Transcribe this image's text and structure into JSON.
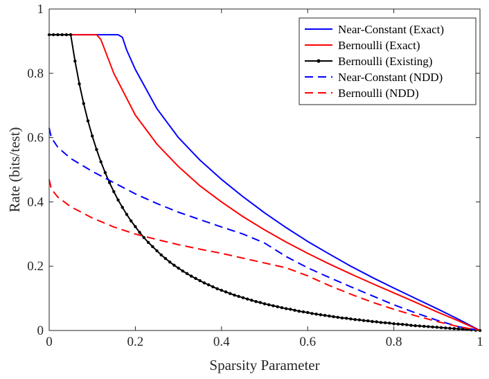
{
  "chart_data": {
    "type": "line",
    "title": "",
    "xlabel": "Sparsity Parameter",
    "ylabel": "Rate (bits/test)",
    "xlim": [
      0,
      1
    ],
    "ylim": [
      0,
      1
    ],
    "x_ticks": [
      0,
      0.2,
      0.4,
      0.6,
      0.8,
      1
    ],
    "x_tick_labels": [
      "0",
      "0.2",
      "0.4",
      "0.6",
      "0.8",
      "1"
    ],
    "y_ticks": [
      0,
      0.2,
      0.4,
      0.6,
      0.8,
      1
    ],
    "y_tick_labels": [
      "0",
      "0.2",
      "0.4",
      "0.6",
      "0.8",
      "1"
    ],
    "grid": false,
    "legend_position": "top-right",
    "series": [
      {
        "name": "Near-Constant (Exact)",
        "color": "#0000ff",
        "style": "solid",
        "marker": "none",
        "points": [
          [
            0,
            0.92
          ],
          [
            0.16,
            0.92
          ],
          [
            0.17,
            0.912
          ],
          [
            0.18,
            0.872
          ],
          [
            0.2,
            0.812
          ],
          [
            0.25,
            0.69
          ],
          [
            0.3,
            0.6
          ],
          [
            0.35,
            0.53
          ],
          [
            0.4,
            0.47
          ],
          [
            0.45,
            0.416
          ],
          [
            0.5,
            0.366
          ],
          [
            0.55,
            0.32
          ],
          [
            0.6,
            0.277
          ],
          [
            0.65,
            0.238
          ],
          [
            0.7,
            0.2
          ],
          [
            0.75,
            0.165
          ],
          [
            0.8,
            0.132
          ],
          [
            0.85,
            0.1
          ],
          [
            0.9,
            0.068
          ],
          [
            0.95,
            0.035
          ],
          [
            1,
            0
          ]
        ]
      },
      {
        "name": "Bernoulli (Exact)",
        "color": "#ff0000",
        "style": "solid",
        "marker": "none",
        "points": [
          [
            0,
            0.92
          ],
          [
            0.11,
            0.92
          ],
          [
            0.12,
            0.905
          ],
          [
            0.13,
            0.87
          ],
          [
            0.15,
            0.8
          ],
          [
            0.2,
            0.67
          ],
          [
            0.25,
            0.58
          ],
          [
            0.3,
            0.51
          ],
          [
            0.35,
            0.45
          ],
          [
            0.4,
            0.4
          ],
          [
            0.45,
            0.354
          ],
          [
            0.5,
            0.313
          ],
          [
            0.55,
            0.275
          ],
          [
            0.6,
            0.24
          ],
          [
            0.65,
            0.207
          ],
          [
            0.7,
            0.176
          ],
          [
            0.75,
            0.146
          ],
          [
            0.8,
            0.117
          ],
          [
            0.85,
            0.088
          ],
          [
            0.9,
            0.058
          ],
          [
            0.95,
            0.03
          ],
          [
            1,
            0
          ]
        ]
      },
      {
        "name": "Bernoulli (Existing)",
        "color": "#000000",
        "style": "solid",
        "marker": "dot",
        "points": [
          [
            0,
            0.92
          ],
          [
            0.01,
            0.92
          ],
          [
            0.02,
            0.92
          ],
          [
            0.03,
            0.92
          ],
          [
            0.04,
            0.92
          ],
          [
            0.05,
            0.92
          ],
          [
            0.06,
            0.838
          ],
          [
            0.07,
            0.767
          ],
          [
            0.08,
            0.706
          ],
          [
            0.09,
            0.652
          ],
          [
            0.1,
            0.605
          ],
          [
            0.11,
            0.563
          ],
          [
            0.12,
            0.525
          ],
          [
            0.13,
            0.491
          ],
          [
            0.14,
            0.46
          ],
          [
            0.15,
            0.432
          ],
          [
            0.16,
            0.406
          ],
          [
            0.17,
            0.383
          ],
          [
            0.18,
            0.361
          ],
          [
            0.19,
            0.341
          ],
          [
            0.2,
            0.323
          ],
          [
            0.21,
            0.305
          ],
          [
            0.22,
            0.289
          ],
          [
            0.23,
            0.274
          ],
          [
            0.24,
            0.261
          ],
          [
            0.25,
            0.248
          ],
          [
            0.26,
            0.235
          ],
          [
            0.27,
            0.224
          ],
          [
            0.28,
            0.213
          ],
          [
            0.29,
            0.203
          ],
          [
            0.3,
            0.194
          ],
          [
            0.31,
            0.185
          ],
          [
            0.32,
            0.177
          ],
          [
            0.33,
            0.169
          ],
          [
            0.34,
            0.162
          ],
          [
            0.35,
            0.155
          ],
          [
            0.36,
            0.148
          ],
          [
            0.37,
            0.142
          ],
          [
            0.38,
            0.136
          ],
          [
            0.39,
            0.13
          ],
          [
            0.4,
            0.125
          ],
          [
            0.41,
            0.12
          ],
          [
            0.42,
            0.115
          ],
          [
            0.43,
            0.11
          ],
          [
            0.44,
            0.106
          ],
          [
            0.45,
            0.102
          ],
          [
            0.46,
            0.098
          ],
          [
            0.47,
            0.094
          ],
          [
            0.48,
            0.09
          ],
          [
            0.49,
            0.087
          ],
          [
            0.5,
            0.083
          ],
          [
            0.51,
            0.08
          ],
          [
            0.52,
            0.077
          ],
          [
            0.53,
            0.074
          ],
          [
            0.54,
            0.071
          ],
          [
            0.55,
            0.068
          ],
          [
            0.56,
            0.066
          ],
          [
            0.57,
            0.063
          ],
          [
            0.58,
            0.06
          ],
          [
            0.59,
            0.058
          ],
          [
            0.6,
            0.056
          ],
          [
            0.61,
            0.053
          ],
          [
            0.62,
            0.051
          ],
          [
            0.63,
            0.049
          ],
          [
            0.64,
            0.047
          ],
          [
            0.65,
            0.045
          ],
          [
            0.66,
            0.043
          ],
          [
            0.67,
            0.041
          ],
          [
            0.68,
            0.039
          ],
          [
            0.69,
            0.038
          ],
          [
            0.7,
            0.036
          ],
          [
            0.71,
            0.034
          ],
          [
            0.72,
            0.033
          ],
          [
            0.73,
            0.031
          ],
          [
            0.74,
            0.03
          ],
          [
            0.75,
            0.028
          ],
          [
            0.76,
            0.027
          ],
          [
            0.77,
            0.025
          ],
          [
            0.78,
            0.024
          ],
          [
            0.79,
            0.023
          ],
          [
            0.8,
            0.021
          ],
          [
            0.81,
            0.02
          ],
          [
            0.82,
            0.019
          ],
          [
            0.83,
            0.018
          ],
          [
            0.84,
            0.016
          ],
          [
            0.85,
            0.015
          ],
          [
            0.86,
            0.014
          ],
          [
            0.87,
            0.013
          ],
          [
            0.88,
            0.012
          ],
          [
            0.89,
            0.011
          ],
          [
            0.9,
            0.01
          ],
          [
            0.91,
            0.009
          ],
          [
            0.92,
            0.008
          ],
          [
            0.93,
            0.007
          ],
          [
            0.94,
            0.006
          ],
          [
            0.95,
            0.005
          ],
          [
            0.96,
            0.004
          ],
          [
            0.97,
            0.003
          ],
          [
            0.98,
            0.002
          ],
          [
            0.99,
            0.001
          ],
          [
            1,
            0
          ]
        ]
      },
      {
        "name": "Near-Constant (NDD)",
        "color": "#0000ff",
        "style": "dashed",
        "marker": "none",
        "points": [
          [
            0,
            0.63
          ],
          [
            0.005,
            0.6
          ],
          [
            0.02,
            0.57
          ],
          [
            0.05,
            0.535
          ],
          [
            0.1,
            0.495
          ],
          [
            0.15,
            0.46
          ],
          [
            0.2,
            0.425
          ],
          [
            0.25,
            0.395
          ],
          [
            0.3,
            0.368
          ],
          [
            0.35,
            0.345
          ],
          [
            0.4,
            0.322
          ],
          [
            0.45,
            0.3
          ],
          [
            0.5,
            0.272
          ],
          [
            0.55,
            0.23
          ],
          [
            0.6,
            0.195
          ],
          [
            0.65,
            0.165
          ],
          [
            0.7,
            0.136
          ],
          [
            0.75,
            0.108
          ],
          [
            0.8,
            0.08
          ],
          [
            0.85,
            0.055
          ],
          [
            0.9,
            0.032
          ],
          [
            0.95,
            0.012
          ],
          [
            1,
            0
          ]
        ]
      },
      {
        "name": "Bernoulli (NDD)",
        "color": "#ff0000",
        "style": "dashed",
        "marker": "none",
        "points": [
          [
            0,
            0.47
          ],
          [
            0.005,
            0.44
          ],
          [
            0.02,
            0.415
          ],
          [
            0.05,
            0.385
          ],
          [
            0.1,
            0.35
          ],
          [
            0.15,
            0.322
          ],
          [
            0.2,
            0.3
          ],
          [
            0.25,
            0.283
          ],
          [
            0.3,
            0.267
          ],
          [
            0.35,
            0.253
          ],
          [
            0.4,
            0.24
          ],
          [
            0.45,
            0.225
          ],
          [
            0.5,
            0.21
          ],
          [
            0.55,
            0.195
          ],
          [
            0.6,
            0.17
          ],
          [
            0.65,
            0.14
          ],
          [
            0.7,
            0.113
          ],
          [
            0.75,
            0.088
          ],
          [
            0.8,
            0.066
          ],
          [
            0.85,
            0.046
          ],
          [
            0.9,
            0.028
          ],
          [
            0.95,
            0.012
          ],
          [
            1,
            0
          ]
        ]
      }
    ]
  }
}
